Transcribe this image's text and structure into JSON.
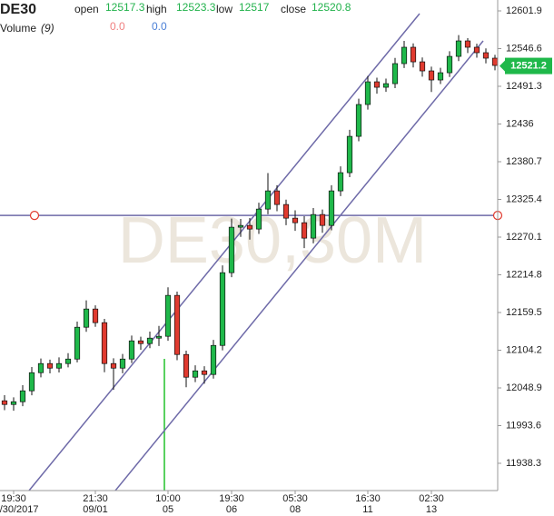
{
  "chart_data": {
    "type": "candlestick",
    "symbol": "DE30",
    "watermark": "DE30,30M",
    "header": {
      "open_label": "open",
      "open": 12517.3,
      "high_label": "high",
      "high": 12523.3,
      "low_label": "low",
      "low": 12517.0,
      "close_label": "close",
      "close": 12520.8
    },
    "volume": {
      "label": "Volume",
      "period": "(9)",
      "value_a": "0.0",
      "value_b": "0.0"
    },
    "last": 12521.2,
    "up_color": "#1fb84a",
    "down_color": "#e03a2f",
    "line_color": "#6e6aa8",
    "xlim": [
      -0.5,
      54.3
    ],
    "ylim": [
      11898.3,
      12617.9
    ],
    "yticks": [
      11938.3,
      11993.6,
      12048.9,
      12104.2,
      12159.5,
      12214.8,
      12270.1,
      12325.4,
      12380.7,
      12436.0,
      12491.3,
      12546.6,
      12601.9
    ],
    "xticks": [
      {
        "value": 1,
        "label": "19:30",
        "sublabel": "08/30/2017"
      },
      {
        "value": 10,
        "label": "21:30",
        "sublabel": "09/01"
      },
      {
        "value": 18,
        "label": "10:00",
        "sublabel": "05"
      },
      {
        "value": 25,
        "label": "19:30",
        "sublabel": "06"
      },
      {
        "value": 32,
        "label": "05:30",
        "sublabel": "08"
      },
      {
        "value": 40,
        "label": "16:30",
        "sublabel": "11"
      },
      {
        "value": 47,
        "label": "02:30",
        "sublabel": "13"
      }
    ],
    "open": [
      12030.0,
      12024.6,
      12028.6,
      12044.6,
      12071.2,
      12084.6,
      12077.9,
      12084.6,
      12091.2,
      12137.9,
      12164.6,
      12144.6,
      12084.6,
      12077.9,
      12091.2,
      12117.9,
      12113.9,
      12121.9,
      12124.6,
      12184.6,
      12097.9,
      12064.6,
      12073.9,
      12068.6,
      12111.2,
      12217.9,
      12284.6,
      12287.2,
      12281.9,
      12311.2,
      12337.9,
      12317.9,
      12297.9,
      12291.2,
      12268.6,
      12303.2,
      12287.2,
      12337.9,
      12364.6,
      12417.9,
      12464.6,
      12497.9,
      12489.9,
      12495.2,
      12524.6,
      12548.6,
      12527.2,
      12513.9,
      12500.6,
      12511.2,
      12535.2,
      12557.9,
      12548.6,
      12540.6,
      12532.6
    ],
    "high": [
      12038.2,
      12035.1,
      12052.8,
      12079.5,
      12092.0,
      12090.4,
      12093.7,
      12099.8,
      12146.1,
      12177.3,
      12170.0,
      12150.2,
      12092.3,
      12098.7,
      12125.6,
      12124.0,
      12131.5,
      12139.8,
      12196.4,
      12190.1,
      12103.5,
      12082.0,
      12080.7,
      12119.4,
      12228.6,
      12297.2,
      12296.8,
      12298.1,
      12320.6,
      12364.0,
      12346.2,
      12325.0,
      12309.4,
      12300.8,
      12312.7,
      12310.5,
      12346.3,
      12373.8,
      12427.5,
      12473.1,
      12506.4,
      12504.0,
      12502.6,
      12533.0,
      12557.9,
      12554.3,
      12533.6,
      12520.1,
      12518.5,
      12542.8,
      12566.4,
      12562.0,
      12553.7,
      12546.9,
      12537.4
    ],
    "low": [
      12016.3,
      12015.4,
      12022.0,
      12038.1,
      12064.3,
      12070.2,
      12071.5,
      12079.0,
      12086.4,
      12131.2,
      12138.5,
      12071.9,
      12046.0,
      12070.4,
      12085.3,
      12104.7,
      12107.2,
      12110.3,
      12118.0,
      12089.6,
      12049.8,
      12057.3,
      12055.1,
      12062.5,
      12104.0,
      12211.3,
      12270.5,
      12266.4,
      12274.8,
      12303.5,
      12308.1,
      12287.6,
      12279.3,
      12253.9,
      12261.0,
      12276.4,
      12280.1,
      12330.2,
      12358.0,
      12410.6,
      12457.2,
      12480.5,
      12483.1,
      12488.7,
      12518.2,
      12519.0,
      12505.4,
      12483.0,
      12494.7,
      12504.9,
      12528.3,
      12540.1,
      12533.2,
      12525.0,
      12514.8
    ],
    "close": [
      12024.6,
      12028.6,
      12044.6,
      12071.2,
      12084.6,
      12077.9,
      12084.6,
      12091.2,
      12137.9,
      12164.6,
      12144.6,
      12084.6,
      12077.9,
      12091.2,
      12117.9,
      12113.9,
      12121.9,
      12124.6,
      12184.6,
      12097.9,
      12064.6,
      12073.9,
      12068.6,
      12111.2,
      12217.9,
      12284.6,
      12287.2,
      12281.9,
      12311.2,
      12337.9,
      12317.9,
      12297.9,
      12291.2,
      12268.6,
      12303.2,
      12287.2,
      12337.9,
      12364.6,
      12417.9,
      12464.6,
      12497.9,
      12489.9,
      12495.2,
      12524.6,
      12548.6,
      12527.2,
      12513.9,
      12500.6,
      12511.2,
      12535.2,
      12557.9,
      12548.6,
      12540.6,
      12532.6,
      12521.9
    ],
    "hline": 12301.9,
    "trendlines": [
      {
        "x": [
          2.7,
          45.7
        ],
        "y": [
          11898.3,
          12597.9
        ]
      },
      {
        "x": [
          12.2,
          52.7
        ],
        "y": [
          11898.3,
          12557.9
        ]
      }
    ]
  }
}
